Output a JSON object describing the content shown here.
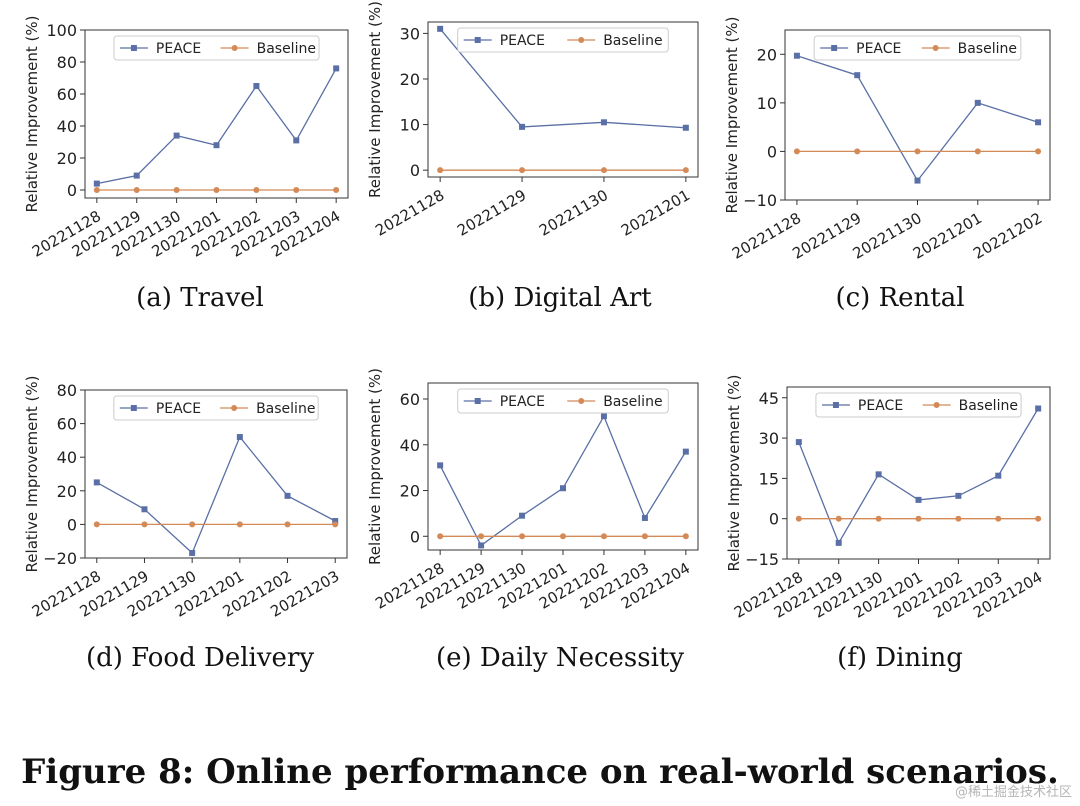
{
  "figure_caption": "Figure 8: Online performance on real-world scenarios.",
  "watermark": "@稀土掘金技术社区",
  "legend_labels": {
    "peace": "PEACE",
    "baseline": "Baseline"
  },
  "colors": {
    "peace": "#5a6fa5",
    "baseline": "#d48a56",
    "axis": "#333333"
  },
  "chart_data": [
    {
      "type": "line",
      "caption": "(a)  Travel",
      "ylabel": "Relative Improvement (%)",
      "categories": [
        "20221128",
        "20221129",
        "20221130",
        "20221201",
        "20221202",
        "20221203",
        "20221204"
      ],
      "ylim": [
        -5,
        100
      ],
      "yticks": [
        0,
        20,
        40,
        60,
        80,
        100
      ],
      "legend_position": "top",
      "series": [
        {
          "name": "PEACE",
          "values": [
            4,
            9,
            34,
            28,
            65,
            31,
            76
          ]
        },
        {
          "name": "Baseline",
          "values": [
            0,
            0,
            0,
            0,
            0,
            0,
            0
          ]
        }
      ]
    },
    {
      "type": "line",
      "caption": "(b)  Digital Art",
      "ylabel": "Relative Improvement (%)",
      "categories": [
        "20221128",
        "20221129",
        "20221130",
        "20221201"
      ],
      "ylim": [
        -1.5,
        32.5
      ],
      "yticks": [
        0,
        10,
        20,
        30
      ],
      "legend_position": "top",
      "series": [
        {
          "name": "PEACE",
          "values": [
            31,
            9.5,
            10.5,
            9.3
          ]
        },
        {
          "name": "Baseline",
          "values": [
            0,
            0,
            0,
            0
          ]
        }
      ]
    },
    {
      "type": "line",
      "caption": "(c)  Rental",
      "ylabel": "Relative Improvement (%)",
      "categories": [
        "20221128",
        "20221129",
        "20221130",
        "20221201",
        "20221202"
      ],
      "ylim": [
        -10,
        25
      ],
      "yticks": [
        -10,
        0,
        10,
        20
      ],
      "legend_position": "top",
      "series": [
        {
          "name": "PEACE",
          "values": [
            19.7,
            15.7,
            -6,
            10,
            6
          ]
        },
        {
          "name": "Baseline",
          "values": [
            0,
            0,
            0,
            0,
            0
          ]
        }
      ]
    },
    {
      "type": "line",
      "caption": "(d)  Food Delivery",
      "ylabel": "Relative Improvement (%)",
      "categories": [
        "20221128",
        "20221129",
        "20221130",
        "20221201",
        "20221202",
        "20221203"
      ],
      "ylim": [
        -20,
        80
      ],
      "yticks": [
        -20,
        0,
        20,
        40,
        60,
        80
      ],
      "legend_position": "top",
      "series": [
        {
          "name": "PEACE",
          "values": [
            25,
            9,
            -17,
            52,
            17,
            2
          ]
        },
        {
          "name": "Baseline",
          "values": [
            0,
            0,
            0,
            0,
            0,
            0
          ]
        }
      ]
    },
    {
      "type": "line",
      "caption": "(e)  Daily Necessity",
      "ylabel": "Relative Improvement (%)",
      "categories": [
        "20221128",
        "20221129",
        "20221130",
        "20221201",
        "20221202",
        "20221203",
        "20221204"
      ],
      "ylim": [
        -6,
        67
      ],
      "yticks": [
        0,
        20,
        40,
        60
      ],
      "legend_position": "top",
      "series": [
        {
          "name": "PEACE",
          "values": [
            31,
            -4,
            9,
            21,
            52.5,
            8,
            37
          ]
        },
        {
          "name": "Baseline",
          "values": [
            0,
            0,
            0,
            0,
            0,
            0,
            0
          ]
        }
      ]
    },
    {
      "type": "line",
      "caption": "(f)  Dining",
      "ylabel": "Relative Improvement (%)",
      "categories": [
        "20221128",
        "20221129",
        "20221130",
        "20221201",
        "20221202",
        "20221203",
        "20221204"
      ],
      "ylim": [
        -15,
        49
      ],
      "yticks": [
        -15,
        0,
        15,
        30,
        45
      ],
      "legend_position": "top",
      "series": [
        {
          "name": "PEACE",
          "values": [
            28.5,
            -9,
            16.5,
            7,
            8.5,
            16,
            41
          ]
        },
        {
          "name": "Baseline",
          "values": [
            0,
            0,
            0,
            0,
            0,
            0,
            0
          ]
        }
      ]
    }
  ]
}
